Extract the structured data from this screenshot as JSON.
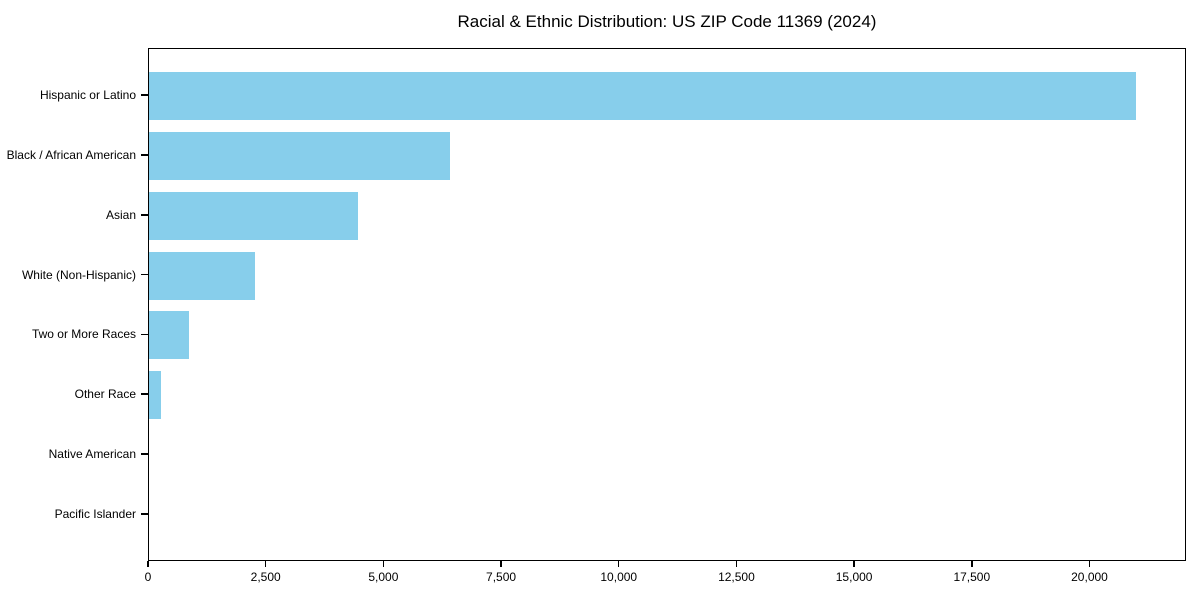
{
  "chart_data": {
    "type": "bar",
    "orientation": "horizontal",
    "title": "Racial & Ethnic Distribution: US ZIP Code 11369 (2024)",
    "categories": [
      "Hispanic or Latino",
      "Black / African American",
      "Asian",
      "White (Non-Hispanic)",
      "Two or More Races",
      "Other Race",
      "Native American",
      "Pacific Islander"
    ],
    "values": [
      21000,
      6400,
      4450,
      2250,
      850,
      250,
      0,
      0
    ],
    "xlabel": "",
    "ylabel": "",
    "xlim": [
      0,
      22050
    ],
    "xticks": [
      0,
      2500,
      5000,
      7500,
      10000,
      12500,
      15000,
      17500,
      20000
    ],
    "xtick_labels": [
      "0",
      "2,500",
      "5,000",
      "7,500",
      "10,000",
      "12,500",
      "15,000",
      "17,500",
      "20,000"
    ],
    "bar_color": "#87CEEB",
    "spine_color": "#000000",
    "grid": false,
    "legend": "none"
  }
}
